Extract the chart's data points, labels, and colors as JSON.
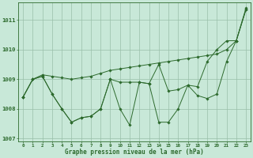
{
  "x": [
    0,
    1,
    2,
    3,
    4,
    5,
    6,
    7,
    8,
    9,
    10,
    11,
    12,
    13,
    14,
    15,
    16,
    17,
    18,
    19,
    20,
    21,
    22,
    23
  ],
  "series1": [
    1008.4,
    1009.0,
    1009.15,
    1009.1,
    1009.05,
    1009.0,
    1009.05,
    1009.1,
    1009.2,
    1009.3,
    1009.35,
    1009.4,
    1009.45,
    1009.5,
    1009.55,
    1009.6,
    1009.65,
    1009.7,
    1009.75,
    1009.8,
    1009.85,
    1010.0,
    1010.3,
    1011.4
  ],
  "series2": [
    1008.4,
    1009.0,
    1009.1,
    1008.5,
    1008.0,
    1007.55,
    1007.7,
    1007.75,
    1008.0,
    1009.0,
    1008.9,
    1008.9,
    1008.9,
    1008.85,
    1009.5,
    1008.6,
    1008.65,
    1008.8,
    1008.75,
    1009.6,
    1010.0,
    1010.3,
    1010.3,
    1011.35
  ],
  "series3": [
    1008.4,
    1009.0,
    1009.1,
    1008.5,
    1008.0,
    1007.55,
    1007.7,
    1007.75,
    1008.0,
    1009.0,
    1008.0,
    1007.45,
    1008.9,
    1008.85,
    1007.55,
    1007.55,
    1008.0,
    1008.8,
    1008.45,
    1008.35,
    1008.5,
    1009.6,
    1010.3,
    1011.35
  ],
  "line_color": "#2d6a2d",
  "marker_color": "#2d6a2d",
  "bg_color": "#c8e8d8",
  "grid_color": "#9abfaa",
  "text_color": "#2d6a2d",
  "ylim": [
    1006.9,
    1011.6
  ],
  "yticks": [
    1007,
    1008,
    1009,
    1010,
    1011
  ],
  "xlim": [
    -0.5,
    23.5
  ],
  "xlabel": "Graphe pression niveau de la mer (hPa)"
}
